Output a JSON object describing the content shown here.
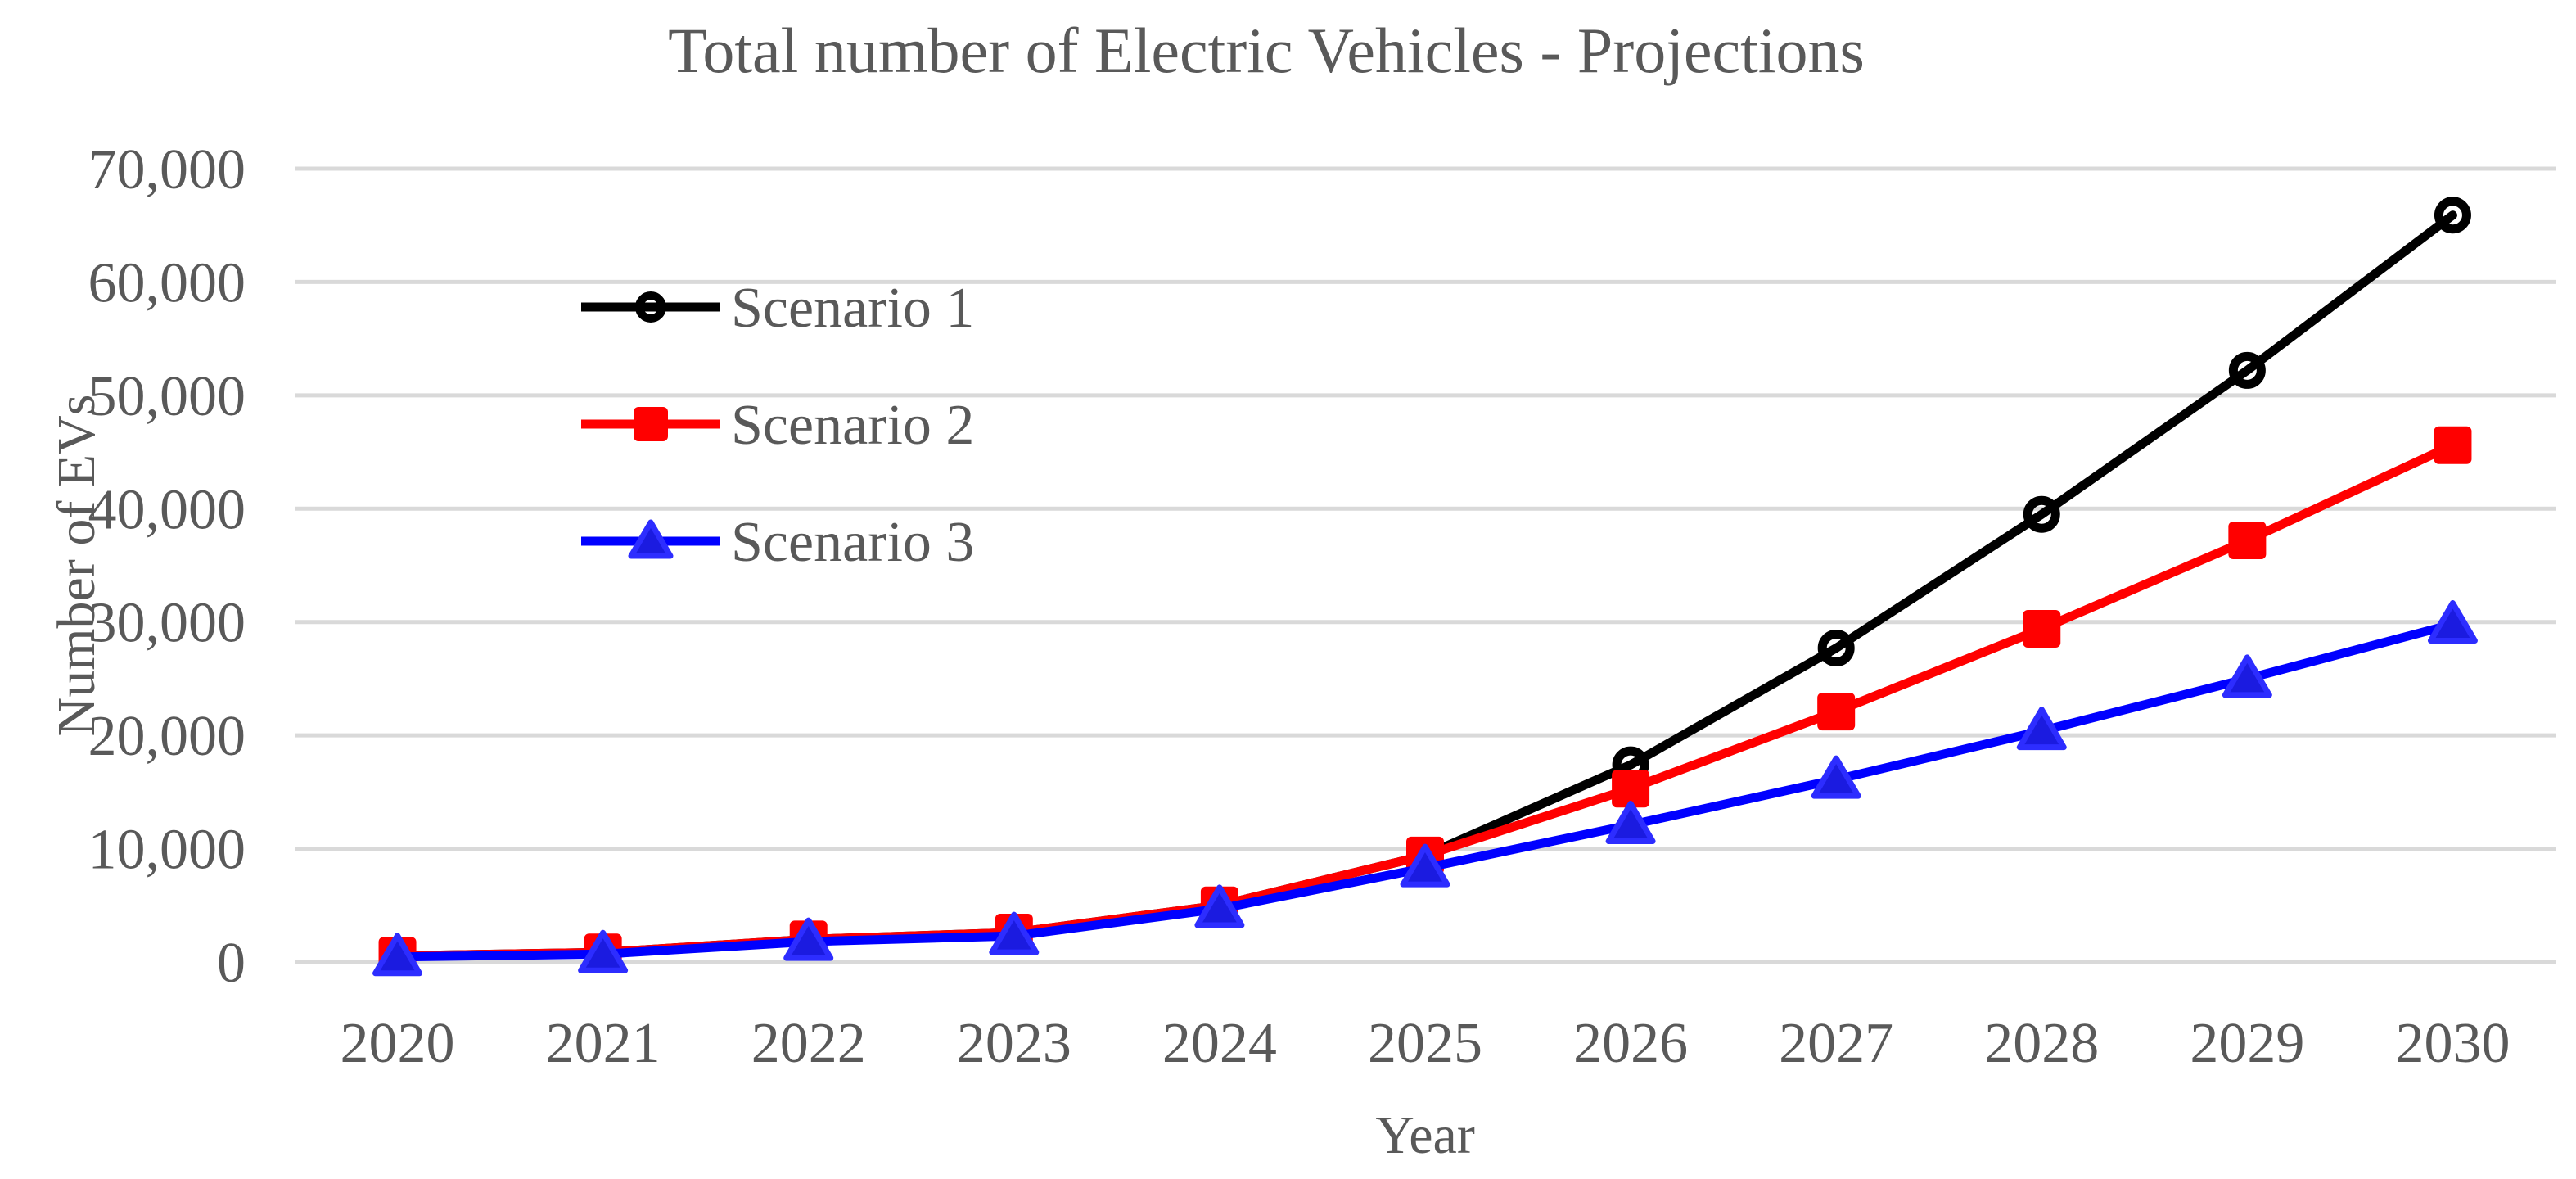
{
  "chart_data": {
    "type": "line",
    "title": "Total number of Electric Vehicles - Projections",
    "xlabel": "Year",
    "ylabel": "Number of EVs",
    "categories": [
      "2020",
      "2021",
      "2022",
      "2023",
      "2024",
      "2025",
      "2026",
      "2027",
      "2028",
      "2029",
      "2030"
    ],
    "yticks": [
      "0",
      "10,000",
      "20,000",
      "30,000",
      "40,000",
      "50,000",
      "60,000",
      "70,000"
    ],
    "ylim": [
      0,
      70000
    ],
    "ytick_step": 10000,
    "grid": true,
    "legend_position": "upper-left-inside",
    "series": [
      {
        "name": "Scenario 1",
        "color": "#000000",
        "marker": "circle-open",
        "values": [
          550,
          850,
          2000,
          2600,
          5000,
          9400,
          17400,
          27700,
          39500,
          52200,
          65900
        ]
      },
      {
        "name": "Scenario 2",
        "color": "#FF0000",
        "marker": "square-filled",
        "values": [
          550,
          850,
          2000,
          2600,
          5000,
          9400,
          15300,
          22100,
          29400,
          37200,
          45600
        ]
      },
      {
        "name": "Scenario 3",
        "color": "#0000FF",
        "marker": "triangle-filled",
        "values": [
          450,
          700,
          1800,
          2300,
          4700,
          8300,
          12100,
          16100,
          20400,
          25000,
          29800
        ]
      }
    ]
  },
  "colors": {
    "text": "#595959",
    "gridline": "#D9D9D9",
    "background": "#FFFFFF"
  }
}
